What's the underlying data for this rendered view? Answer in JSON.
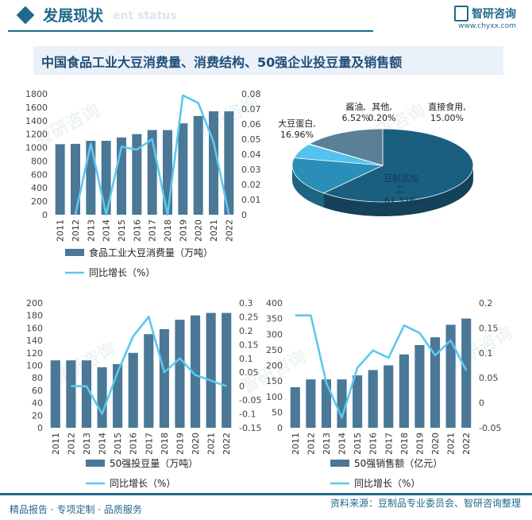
{
  "header": {
    "section_title": "发展现状",
    "ghost_text": "ent status",
    "brand_name": "智研咨询",
    "brand_url": "www.chyxx.com"
  },
  "chart_title": "中国食品工业大豆消费量、消费结构、50强企业投豆量及销售额",
  "watermark": "智研咨询",
  "footer": {
    "left": "精品报告 · 专项定制 · 品质服务",
    "right": "资料来源：豆制品专业委员会、智研咨询整理"
  },
  "colors": {
    "bar": "#4a7896",
    "line": "#5bc8f0",
    "accent": "#1f6a8c"
  },
  "chart_data": [
    {
      "type": "bar",
      "categories": [
        "2011",
        "2012",
        "2013",
        "2014",
        "2015",
        "2016",
        "2017",
        "2018",
        "2019",
        "2020",
        "2021",
        "2022"
      ],
      "series": [
        {
          "name": "食品工业大豆消费量（万吨）",
          "kind": "bar",
          "axis": "left",
          "values": [
            1050,
            1055,
            1100,
            1100,
            1150,
            1200,
            1260,
            1260,
            1360,
            1470,
            1540,
            1540
          ]
        },
        {
          "name": "同比增长（%）",
          "kind": "line",
          "axis": "right",
          "values": [
            null,
            0,
            0.047,
            0,
            0.045,
            0.043,
            0.05,
            0,
            0.079,
            0.074,
            0.048,
            0
          ]
        }
      ],
      "ylim": [
        0,
        1800
      ],
      "yticks": [
        0,
        200,
        400,
        600,
        800,
        1000,
        1200,
        1400,
        1600,
        1800
      ],
      "y2lim": [
        0,
        0.08
      ],
      "y2ticks": [
        "0",
        "0.01",
        "0.02",
        "0.03",
        "0.04",
        "0.05",
        "0.06",
        "0.07",
        "0.08"
      ],
      "legend": "bottom"
    },
    {
      "type": "pie",
      "slices": [
        {
          "label": "豆制品加工",
          "value": 61.32,
          "text": "61.32%",
          "color": "#1b5f80"
        },
        {
          "label": "大豆蛋白",
          "value": 16.96,
          "text": "16.96%",
          "color": "#2a8fb8"
        },
        {
          "label": "酱油",
          "value": 6.52,
          "text": "6.52%",
          "color": "#53c2ec"
        },
        {
          "label": "其他",
          "value": 0.2,
          "text": "0.20%",
          "color": "#9ddcf5"
        },
        {
          "label": "直接食用",
          "value": 15.0,
          "text": "15.00%",
          "color": "#5a7f96"
        }
      ]
    },
    {
      "type": "bar",
      "categories": [
        "2011",
        "2012",
        "2013",
        "2014",
        "2015",
        "2016",
        "2017",
        "2018",
        "2019",
        "2020",
        "2021",
        "2022"
      ],
      "series": [
        {
          "name": "50强投豆量（万吨）",
          "kind": "bar",
          "axis": "left",
          "values": [
            108,
            108,
            108,
            97,
            102,
            120,
            150,
            158,
            173,
            180,
            184,
            184
          ]
        },
        {
          "name": "同比增长（%）",
          "kind": "line",
          "axis": "right",
          "values": [
            null,
            0,
            0,
            -0.1,
            0.05,
            0.18,
            0.25,
            0.05,
            0.1,
            0.04,
            0.02,
            0
          ]
        }
      ],
      "ylim": [
        0,
        200
      ],
      "yticks": [
        0,
        20,
        40,
        60,
        80,
        100,
        120,
        140,
        160,
        180,
        200
      ],
      "y2lim": [
        -0.15,
        0.3
      ],
      "y2ticks": [
        "-0.15",
        "-0.1",
        "-0.05",
        "0",
        "0.05",
        "0.1",
        "0.15",
        "0.2",
        "0.25",
        "0.3"
      ],
      "legend": "bottom"
    },
    {
      "type": "bar",
      "categories": [
        "2011",
        "2012",
        "2013",
        "2014",
        "2015",
        "2016",
        "2017",
        "2018",
        "2019",
        "2020",
        "2021",
        "2022"
      ],
      "series": [
        {
          "name": "50强销售额（亿元）",
          "kind": "bar",
          "axis": "left",
          "values": [
            130,
            155,
            155,
            155,
            168,
            185,
            200,
            235,
            265,
            290,
            330,
            350
          ]
        },
        {
          "name": "同比增长（%）",
          "kind": "line",
          "axis": "right",
          "values": [
            0.175,
            0.175,
            0.04,
            -0.03,
            0.07,
            0.105,
            0.09,
            0.155,
            0.14,
            0.095,
            0.125,
            0.065
          ]
        }
      ],
      "ylim": [
        0,
        400
      ],
      "yticks": [
        0,
        50,
        100,
        150,
        200,
        250,
        300,
        350,
        400
      ],
      "y2lim": [
        -0.05,
        0.2
      ],
      "y2ticks": [
        "-0.05",
        "0",
        "0.05",
        "0.1",
        "0.15",
        "0.2"
      ],
      "legend": "bottom"
    }
  ]
}
